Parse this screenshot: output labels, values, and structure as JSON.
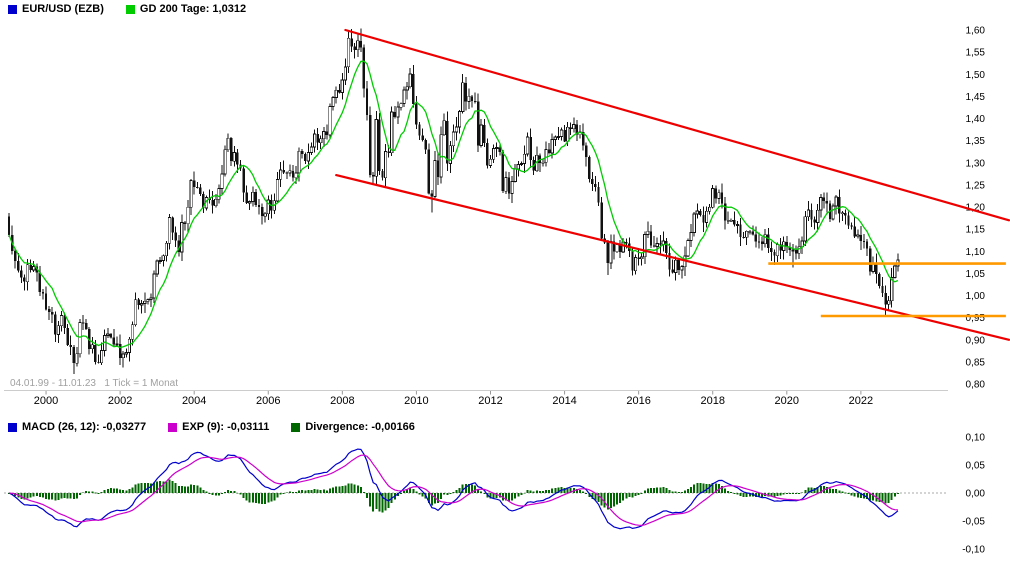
{
  "main_chart": {
    "legend": [
      {
        "label": "EUR/USD (EZB)",
        "color": "#0000cc"
      },
      {
        "label": "GD 200 Tage: 1,0312",
        "color": "#00cc00"
      }
    ],
    "range_text": "04.01.99 - 11.01.23   1 Tick = 1 Monat"
  },
  "macd_chart": {
    "legend": [
      {
        "label": "MACD (26, 12): -0,03277",
        "color": "#0000cc"
      },
      {
        "label": "EXP (9): -0,03111",
        "color": "#cc00cc"
      },
      {
        "label": "Divergence: -0,00166",
        "color": "#006600"
      }
    ]
  },
  "colors": {
    "candle_up_fill": "#ffffff",
    "candle_down_fill": "#111111",
    "candle_stroke": "#111111",
    "ma_line": "#00cc00",
    "trend_line": "#ee0000",
    "support_line": "#ff9900",
    "macd_line": "#0000cc",
    "signal_line": "#cc00cc",
    "histogram": "#006600",
    "zero_line": "#aaaaaa",
    "axis_line": "#cccccc"
  },
  "chart_data": [
    {
      "type": "candlestick",
      "title": "EUR/USD (EZB)",
      "interval": "1 Monat",
      "start_date": "04.01.99",
      "end_date": "11.01.23",
      "months_start": "1999-01",
      "first_open": 1.1789,
      "x_tick_labels": [
        "2000",
        "2002",
        "2004",
        "2006",
        "2008",
        "2010",
        "2012",
        "2014",
        "2016",
        "2018",
        "2020",
        "2022"
      ],
      "y_ticks": [
        1.6,
        1.55,
        1.5,
        1.45,
        1.4,
        1.35,
        1.3,
        1.25,
        1.2,
        1.15,
        1.1,
        1.05,
        1.0,
        0.95,
        0.9,
        0.85,
        0.8
      ],
      "y_tick_labels": [
        "1,60",
        "1,55",
        "1,50",
        "1,45",
        "1,40",
        "1,35",
        "1,30",
        "1,25",
        "1,20",
        "1,15",
        "1,10",
        "1,05",
        "1,00",
        "0,95",
        "0,90",
        "0,85",
        "0,80"
      ],
      "ylim": [
        0.785,
        1.625
      ],
      "closes": [
        1.1371,
        1.1004,
        1.0776,
        1.0565,
        1.0406,
        1.031,
        1.0694,
        1.0579,
        1.0656,
        1.0523,
        1.0083,
        1.0046,
        0.969,
        0.9622,
        0.9574,
        0.9115,
        0.9317,
        0.9545,
        0.9269,
        0.8884,
        0.8839,
        0.847,
        0.8684,
        0.9388,
        0.9377,
        0.9248,
        0.8794,
        0.8885,
        0.8499,
        0.848,
        0.8759,
        0.9097,
        0.9131,
        0.905,
        0.8893,
        0.8901,
        0.8592,
        0.8676,
        0.8715,
        0.901,
        0.9338,
        0.9906,
        0.9784,
        0.9817,
        0.9869,
        0.9908,
        0.9942,
        1.0487,
        1.0777,
        1.079,
        1.09,
        1.118,
        1.1766,
        1.1427,
        1.1248,
        1.0983,
        1.1652,
        1.1621,
        1.1995,
        1.2597,
        1.2452,
        1.2441,
        1.2293,
        1.1975,
        1.2217,
        1.2155,
        1.2028,
        1.2176,
        1.242,
        1.2746,
        1.3295,
        1.3554,
        1.3034,
        1.323,
        1.2964,
        1.2868,
        1.2328,
        1.2092,
        1.2123,
        1.2334,
        1.2042,
        1.1995,
        1.1791,
        1.1849,
        1.2158,
        1.1925,
        1.2139,
        1.2624,
        1.2833,
        1.2779,
        1.2764,
        1.2817,
        1.266,
        1.277,
        1.3261,
        1.3199,
        1.3043,
        1.323,
        1.3354,
        1.3651,
        1.3453,
        1.3542,
        1.3707,
        1.3626,
        1.4271,
        1.4475,
        1.4639,
        1.4589,
        1.487,
        1.5167,
        1.5812,
        1.5623,
        1.5554,
        1.5755,
        1.5601,
        1.4675,
        1.4081,
        1.2726,
        1.2694,
        1.3978,
        1.2816,
        1.2662,
        1.3257,
        1.3226,
        1.4147,
        1.4033,
        1.4257,
        1.4335,
        1.4643,
        1.4719,
        1.5005,
        1.4326,
        1.3866,
        1.3617,
        1.351,
        1.3295,
        1.2306,
        1.2238,
        1.3049,
        1.268,
        1.3634,
        1.3948,
        1.2985,
        1.3384,
        1.3692,
        1.381,
        1.4158,
        1.4807,
        1.4385,
        1.4502,
        1.4399,
        1.438,
        1.3387,
        1.3852,
        1.3446,
        1.2939,
        1.308,
        1.3325,
        1.3343,
        1.324,
        1.2358,
        1.2667,
        1.2304,
        1.2576,
        1.286,
        1.296,
        1.2986,
        1.3194,
        1.3579,
        1.3057,
        1.2819,
        1.3168,
        1.2999,
        1.301,
        1.33,
        1.3222,
        1.3527,
        1.3585,
        1.3591,
        1.3743,
        1.3486,
        1.3802,
        1.3769,
        1.3867,
        1.3634,
        1.3692,
        1.339,
        1.3133,
        1.2631,
        1.2524,
        1.2452,
        1.2098,
        1.1289,
        1.1197,
        1.0731,
        1.1224,
        1.0988,
        1.1147,
        1.0984,
        1.1211,
        1.1177,
        1.1006,
        1.0562,
        1.0862,
        1.0831,
        1.0873,
        1.138,
        1.1451,
        1.1132,
        1.1106,
        1.1174,
        1.1159,
        1.1235,
        1.0962,
        1.0588,
        1.0517,
        1.0798,
        1.0576,
        1.0652,
        1.0895,
        1.1244,
        1.1426,
        1.1842,
        1.191,
        1.1814,
        1.1646,
        1.1904,
        1.1993,
        1.2415,
        1.2193,
        1.2324,
        1.2079,
        1.1693,
        1.1684,
        1.1701,
        1.1601,
        1.1604,
        1.1318,
        1.1317,
        1.145,
        1.1448,
        1.1373,
        1.1218,
        1.1215,
        1.1168,
        1.1373,
        1.1075,
        1.0982,
        1.0899,
        1.1152,
        1.1018,
        1.1213,
        1.1093,
        1.1026,
        1.1031,
        1.0955,
        1.1101,
        1.1234,
        1.1778,
        1.1935,
        1.1721,
        1.1647,
        1.1928,
        1.2216,
        1.2136,
        1.2075,
        1.173,
        1.2022,
        1.2227,
        1.1858,
        1.187,
        1.181,
        1.1579,
        1.1558,
        1.1339,
        1.137,
        1.1235,
        1.1216,
        1.1067,
        1.0545,
        1.0734,
        1.0484,
        1.022,
        1.0054,
        0.9802,
        0.9881,
        1.0405,
        1.0666,
        1.08
      ],
      "extremes": [
        {
          "month": 21,
          "low": 0.8225
        },
        {
          "month": 111,
          "high": 1.6019
        },
        {
          "month": 114,
          "high": 1.6038
        },
        {
          "month": 130,
          "high": 1.5144
        },
        {
          "month": 137,
          "low": 1.1876
        },
        {
          "month": 148,
          "high": 1.494
        },
        {
          "month": 194,
          "low": 1.0458
        },
        {
          "month": 216,
          "low": 1.0341
        },
        {
          "month": 254,
          "low": 1.0636
        },
        {
          "month": 284,
          "low": 0.9536
        }
      ],
      "moving_average": {
        "name": "GD 200 Tage",
        "period_months": 9,
        "last_value": 1.0312,
        "color": "#00cc00"
      },
      "trendlines": [
        {
          "from_month": 109,
          "from_price": 1.6,
          "to_month": 324,
          "to_price": 1.17,
          "color": "#ee0000"
        },
        {
          "from_month": 106,
          "from_price": 1.272,
          "to_month": 324,
          "to_price": 0.9,
          "color": "#ee0000"
        }
      ],
      "horizontal_lines": [
        {
          "price": 1.072,
          "from_month": 246,
          "to_month": 323,
          "color": "#ff9900"
        },
        {
          "price": 0.9536,
          "from_month": 263,
          "to_month": 323,
          "color": "#ff9900"
        }
      ]
    },
    {
      "type": "macd",
      "title": "MACD (26, 12)",
      "params": {
        "fast": 12,
        "slow": 26,
        "signal": 9
      },
      "last_values": {
        "macd": -0.03277,
        "signal": -0.03111,
        "divergence": -0.00166
      },
      "y_ticks": [
        0.1,
        0.05,
        0.0,
        -0.05,
        -0.1
      ],
      "y_tick_labels": [
        "0,10",
        "0,05",
        "0,00",
        "-0,05",
        "-0,10"
      ],
      "ylim": [
        -0.115,
        0.115
      ],
      "derived_from": "main chart monthly closes"
    }
  ]
}
